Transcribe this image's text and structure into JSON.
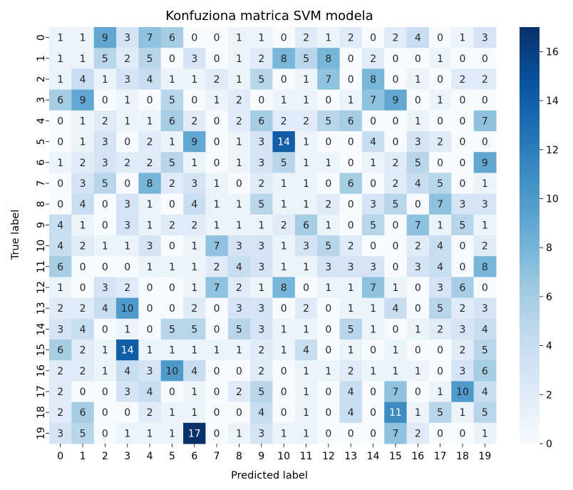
{
  "chart_data": {
    "type": "heatmap",
    "title": "Konfuziona matrica SVM modela",
    "xlabel": "Predicted label",
    "ylabel": "True label",
    "x_categories": [
      "0",
      "1",
      "2",
      "3",
      "4",
      "5",
      "6",
      "7",
      "8",
      "9",
      "10",
      "11",
      "12",
      "13",
      "14",
      "15",
      "16",
      "17",
      "18",
      "19"
    ],
    "y_categories": [
      "0",
      "1",
      "2",
      "3",
      "4",
      "5",
      "6",
      "7",
      "8",
      "9",
      "10",
      "11",
      "12",
      "13",
      "14",
      "15",
      "16",
      "17",
      "18",
      "19"
    ],
    "values": [
      [
        1,
        1,
        9,
        3,
        7,
        6,
        0,
        0,
        1,
        1,
        0,
        2,
        1,
        2,
        0,
        2,
        4,
        0,
        1,
        3
      ],
      [
        1,
        1,
        5,
        2,
        5,
        0,
        3,
        0,
        1,
        2,
        8,
        5,
        8,
        0,
        2,
        0,
        0,
        1,
        0,
        0
      ],
      [
        1,
        4,
        1,
        3,
        4,
        1,
        1,
        2,
        1,
        5,
        0,
        1,
        7,
        0,
        8,
        0,
        1,
        0,
        2,
        2
      ],
      [
        6,
        9,
        0,
        1,
        0,
        5,
        0,
        1,
        2,
        0,
        1,
        1,
        0,
        1,
        7,
        9,
        0,
        1,
        0,
        0
      ],
      [
        0,
        1,
        2,
        1,
        1,
        6,
        2,
        0,
        2,
        6,
        2,
        2,
        5,
        6,
        0,
        0,
        1,
        0,
        0,
        7
      ],
      [
        0,
        1,
        3,
        0,
        2,
        1,
        9,
        0,
        1,
        3,
        14,
        1,
        0,
        0,
        4,
        0,
        3,
        2,
        0,
        0
      ],
      [
        1,
        2,
        3,
        2,
        2,
        5,
        1,
        0,
        1,
        3,
        5,
        1,
        1,
        0,
        1,
        2,
        5,
        0,
        0,
        9
      ],
      [
        0,
        3,
        5,
        0,
        8,
        2,
        3,
        1,
        0,
        2,
        1,
        1,
        0,
        6,
        0,
        2,
        4,
        5,
        0,
        1
      ],
      [
        0,
        4,
        0,
        3,
        1,
        0,
        4,
        1,
        1,
        5,
        1,
        1,
        2,
        0,
        3,
        5,
        0,
        7,
        3,
        3
      ],
      [
        4,
        1,
        0,
        3,
        1,
        2,
        2,
        1,
        1,
        1,
        2,
        6,
        1,
        0,
        5,
        0,
        7,
        1,
        5,
        1
      ],
      [
        4,
        2,
        1,
        1,
        3,
        0,
        1,
        7,
        3,
        3,
        1,
        3,
        5,
        2,
        0,
        0,
        2,
        4,
        0,
        2
      ],
      [
        6,
        0,
        0,
        0,
        1,
        1,
        1,
        2,
        4,
        3,
        1,
        1,
        3,
        3,
        3,
        0,
        3,
        4,
        0,
        8
      ],
      [
        1,
        0,
        3,
        2,
        0,
        0,
        1,
        7,
        2,
        1,
        8,
        0,
        1,
        1,
        7,
        1,
        0,
        3,
        6,
        0
      ],
      [
        2,
        2,
        4,
        10,
        0,
        0,
        2,
        0,
        3,
        3,
        0,
        2,
        0,
        1,
        1,
        4,
        0,
        5,
        2,
        3
      ],
      [
        3,
        4,
        0,
        1,
        0,
        5,
        5,
        0,
        5,
        3,
        1,
        1,
        0,
        5,
        1,
        0,
        1,
        2,
        3,
        4
      ],
      [
        6,
        2,
        1,
        14,
        1,
        1,
        1,
        1,
        1,
        2,
        1,
        4,
        0,
        1,
        0,
        1,
        0,
        0,
        2,
        5
      ],
      [
        2,
        2,
        1,
        4,
        3,
        10,
        4,
        0,
        0,
        2,
        0,
        1,
        1,
        2,
        1,
        1,
        1,
        0,
        3,
        6
      ],
      [
        2,
        0,
        0,
        3,
        4,
        0,
        1,
        0,
        2,
        5,
        0,
        1,
        0,
        4,
        0,
        7,
        0,
        1,
        10,
        4
      ],
      [
        2,
        6,
        0,
        0,
        2,
        1,
        1,
        0,
        0,
        4,
        0,
        1,
        0,
        4,
        0,
        11,
        1,
        5,
        1,
        5
      ],
      [
        3,
        5,
        0,
        1,
        1,
        1,
        17,
        0,
        1,
        3,
        1,
        1,
        0,
        0,
        0,
        7,
        2,
        0,
        0,
        1
      ]
    ],
    "vmin": 0,
    "vmax": 17,
    "colorbar_ticks": [
      0,
      2,
      4,
      6,
      8,
      10,
      12,
      14,
      16
    ],
    "colormap": [
      "#f7fbff",
      "#deebf7",
      "#c6dbef",
      "#9ecae1",
      "#6baed6",
      "#4292c6",
      "#2171b5",
      "#08519c",
      "#08306b"
    ]
  }
}
